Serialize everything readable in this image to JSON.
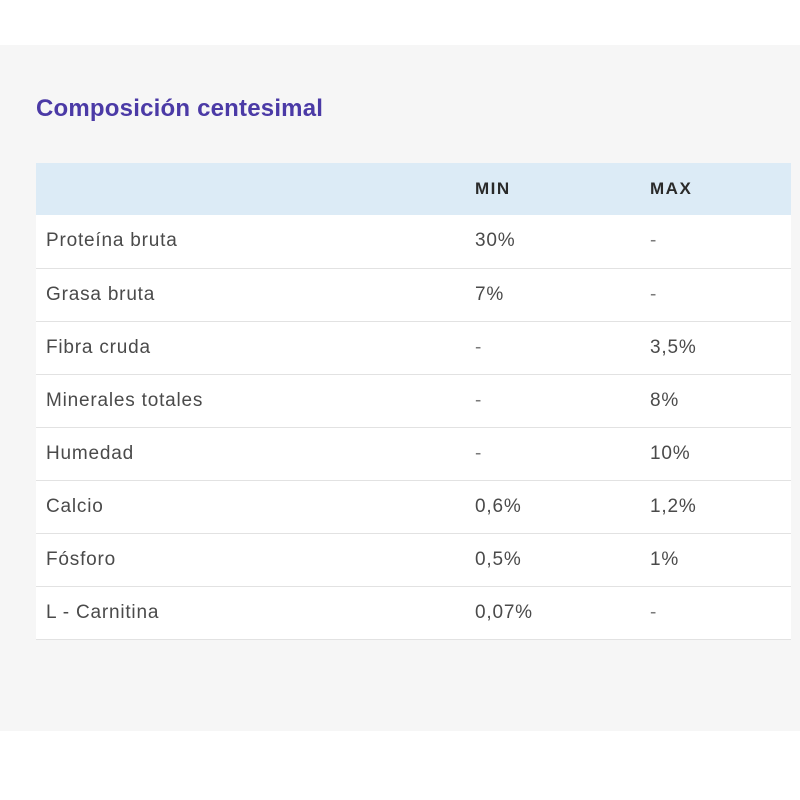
{
  "section": {
    "title": "Composición centesimal"
  },
  "table": {
    "headers": [
      "",
      "MIN",
      "MAX"
    ],
    "rows": [
      {
        "name": "Proteína bruta",
        "min": "30%",
        "max": "-"
      },
      {
        "name": "Grasa bruta",
        "min": "7%",
        "max": "-"
      },
      {
        "name": "Fibra cruda",
        "min": "-",
        "max": "3,5%"
      },
      {
        "name": "Minerales totales",
        "min": "-",
        "max": "8%"
      },
      {
        "name": "Humedad",
        "min": "-",
        "max": "10%"
      },
      {
        "name": "Calcio",
        "min": "0,6%",
        "max": "1,2%"
      },
      {
        "name": "Fósforo",
        "min": "0,5%",
        "max": "1%"
      },
      {
        "name": "L - Carnitina",
        "min": "0,07%",
        "max": "-"
      }
    ]
  },
  "colors": {
    "title": "#4b3aa6",
    "header_bg": "#dcebf6",
    "panel_bg": "#f6f6f6"
  }
}
